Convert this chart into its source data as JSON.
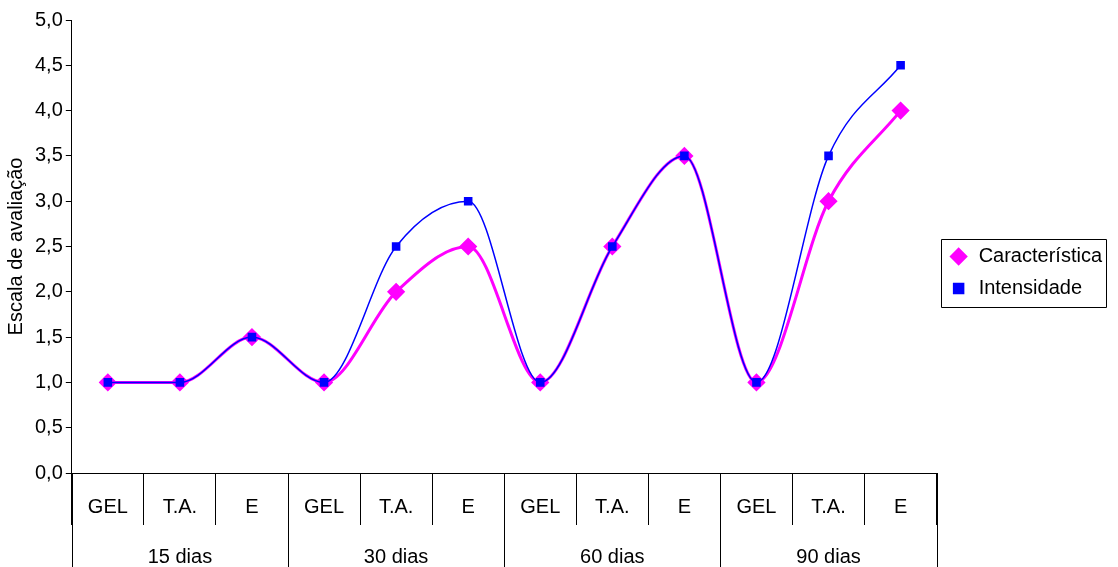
{
  "chart_data": {
    "type": "line",
    "ylabel": "Escala de avaliação",
    "categories": [
      "GEL",
      "T.A.",
      "E",
      "GEL",
      "T.A.",
      "E",
      "GEL",
      "T.A.",
      "E",
      "GEL",
      "T.A.",
      "E"
    ],
    "annotations": [
      "15 dias",
      "30 dias",
      "60 dias",
      "90 dias"
    ],
    "series": [
      {
        "name": "Característica",
        "color": "#ff00ff",
        "marker": "diamond",
        "values": [
          1,
          1,
          1.5,
          1,
          2,
          2.5,
          1,
          2.5,
          3.5,
          1,
          3,
          4
        ]
      },
      {
        "name": "Intensidade",
        "color": "#0000ff",
        "marker": "square",
        "values": [
          1,
          1,
          1.5,
          1,
          2.5,
          3,
          1,
          2.5,
          3.5,
          1,
          3.5,
          4.5
        ]
      }
    ],
    "ylim": [
      0,
      5
    ],
    "yticks": [
      {
        "value": 0,
        "label": "0,0"
      },
      {
        "value": 0.5,
        "label": "0,5"
      },
      {
        "value": 1,
        "label": "1,0"
      },
      {
        "value": 1.5,
        "label": "1,5"
      },
      {
        "value": 2,
        "label": "2,0"
      },
      {
        "value": 2.5,
        "label": "2,5"
      },
      {
        "value": 3,
        "label": "3,0"
      },
      {
        "value": 3.5,
        "label": "3,5"
      },
      {
        "value": 4,
        "label": "4,0"
      },
      {
        "value": 4.5,
        "label": "4,5"
      },
      {
        "value": 5,
        "label": "5,0"
      }
    ],
    "grid": false,
    "legend": "right",
    "line_style": "solid"
  }
}
